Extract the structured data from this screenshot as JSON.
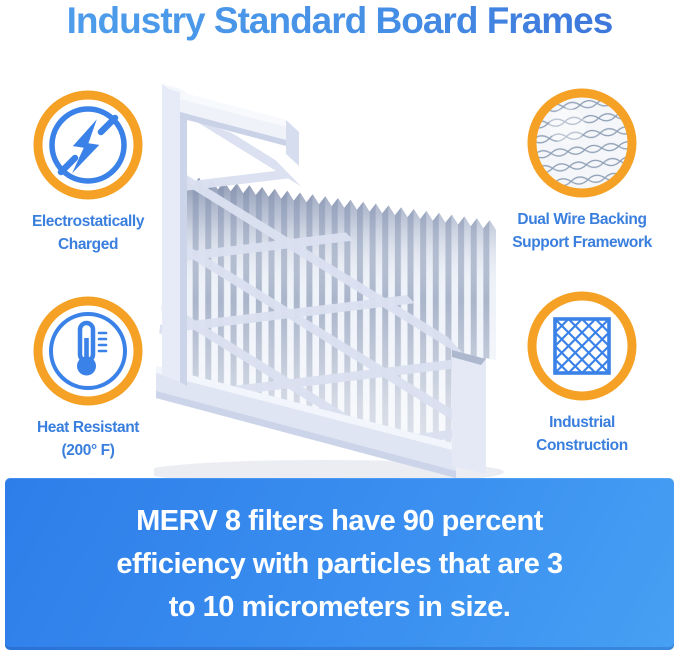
{
  "title": "Industry Standard Board Frames",
  "features": [
    {
      "name": "electrostatically-charged",
      "icon": "lightning-bolt-circle-icon",
      "label_lines": [
        "Electrostatically",
        "Charged"
      ]
    },
    {
      "name": "heat-resistant",
      "icon": "thermometer-circle-icon",
      "label_lines": [
        "Heat Resistant",
        "(200° F)"
      ]
    },
    {
      "name": "dual-wire-backing",
      "icon": "wire-mesh-circle-icon",
      "label_lines": [
        "Dual Wire Backing",
        "Support Framework"
      ]
    },
    {
      "name": "industrial-construction",
      "icon": "diamond-lattice-circle-icon",
      "label_lines": [
        "Industrial",
        "Construction"
      ]
    }
  ],
  "illustration": {
    "subject": "pleated air filter with board frame, corner cutaway view"
  },
  "banner": {
    "lines": [
      "MERV 8 filters have 90 percent",
      "efficiency with particles that are 3",
      "to 10 micrometers in size."
    ]
  },
  "colors": {
    "accent_orange": "#F5A125",
    "icon_blue": "#3B82E8",
    "label_blue": "#3A7FDE",
    "title_gradient_start": "#4FA0EC",
    "title_gradient_end": "#3A70D8",
    "banner_gradient_start": "#2E7EE9",
    "banner_gradient_end": "#47A0F3",
    "banner_text": "#FFFFFF",
    "background": "#FFFFFF"
  }
}
